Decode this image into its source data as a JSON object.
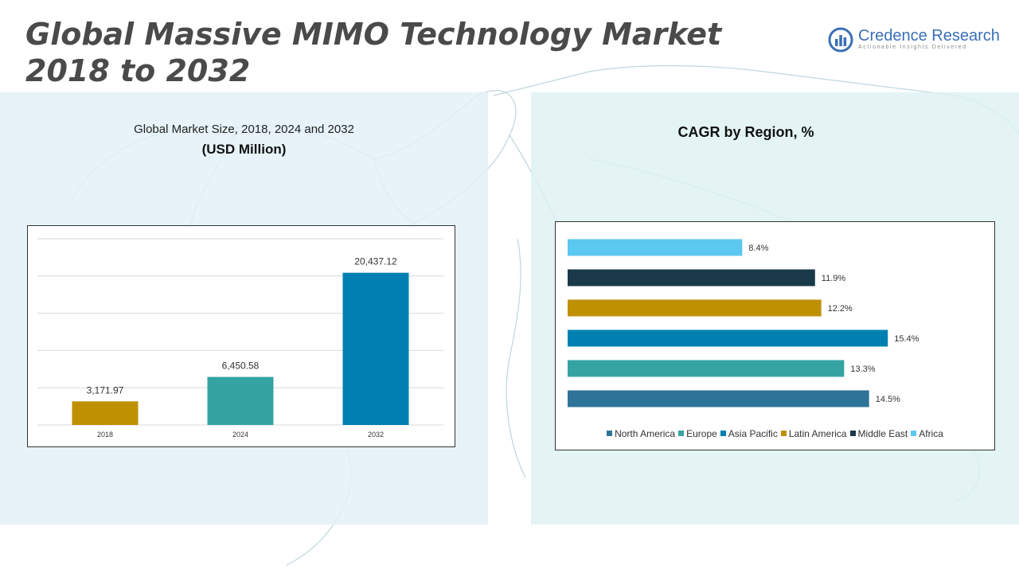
{
  "title_line1": "Global Massive MIMO Technology Market",
  "title_line2": "2018 to 2032",
  "logo": {
    "name": "Credence Research",
    "tagline": "Actionable Insights Delivered"
  },
  "left_chart": {
    "subtitle": "Global Market Size, 2018, 2024 and 2032",
    "unit": "(USD Million)"
  },
  "right_chart": {
    "title": "CAGR by Region, %"
  },
  "colors": {
    "gold": "#bf9000",
    "teal": "#36a3a3",
    "blue": "#0080b0",
    "navy": "#1a3a4a",
    "sky": "#5bc8f0",
    "steel": "#2e7499"
  },
  "chart_data": [
    {
      "type": "bar",
      "categories": [
        "2018",
        "2024",
        "2032"
      ],
      "values": [
        3171.97,
        6450.58,
        20437.12
      ],
      "value_labels": [
        "3,171.97",
        "6,450.58",
        "20,437.12"
      ],
      "bar_colors": [
        "#bf9000",
        "#36a3a3",
        "#0080b0"
      ],
      "ylim": [
        0,
        25000
      ],
      "grid": true
    },
    {
      "type": "bar",
      "orientation": "horizontal",
      "categories": [
        "North America",
        "Europe",
        "Asia Pacific",
        "Latin America",
        "Middle East",
        "Africa"
      ],
      "values": [
        14.5,
        13.3,
        15.4,
        12.2,
        11.9,
        8.4
      ],
      "value_labels": [
        "14.5%",
        "13.3%",
        "15.4%",
        "12.2%",
        "11.9%",
        "8.4%"
      ],
      "bar_colors": [
        "#2e7499",
        "#36a3a3",
        "#0080b0",
        "#bf9000",
        "#1a3a4a",
        "#5bc8f0"
      ],
      "xlim": [
        0,
        17
      ],
      "legend": "bottom",
      "grid": false
    }
  ]
}
